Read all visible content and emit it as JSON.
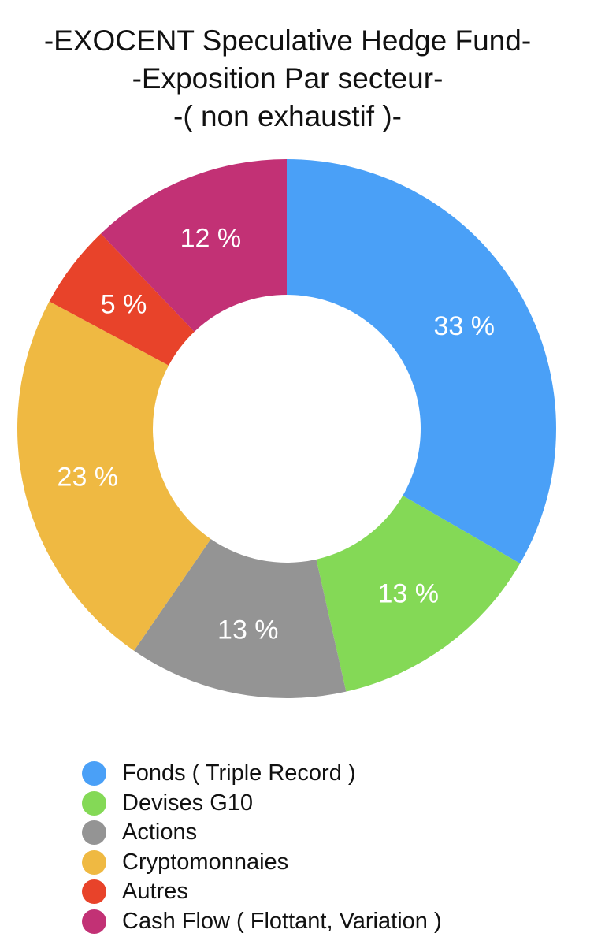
{
  "chart_data": {
    "type": "pie",
    "variant": "donut",
    "title": [
      "-EXOCENT Speculative Hedge Fund-",
      "-Exposition Par secteur-",
      "-( non exhaustif )-"
    ],
    "categories": [
      "Fonds ( Triple Record )",
      "Devises G10",
      "Actions",
      "Cryptomonnaies",
      "Autres",
      "Cash Flow ( Flottant, Variation )"
    ],
    "values": [
      33,
      13,
      13,
      23,
      5,
      12
    ],
    "data_labels": [
      "33 %",
      "13 %",
      "13 %",
      "23 %",
      "5 %",
      "12 %"
    ],
    "colors": [
      "#4aa0f7",
      "#84d956",
      "#949494",
      "#efb942",
      "#e8432a",
      "#c23175"
    ],
    "start": "12 o'clock",
    "direction": "clockwise",
    "legend_position": "bottom-left"
  }
}
